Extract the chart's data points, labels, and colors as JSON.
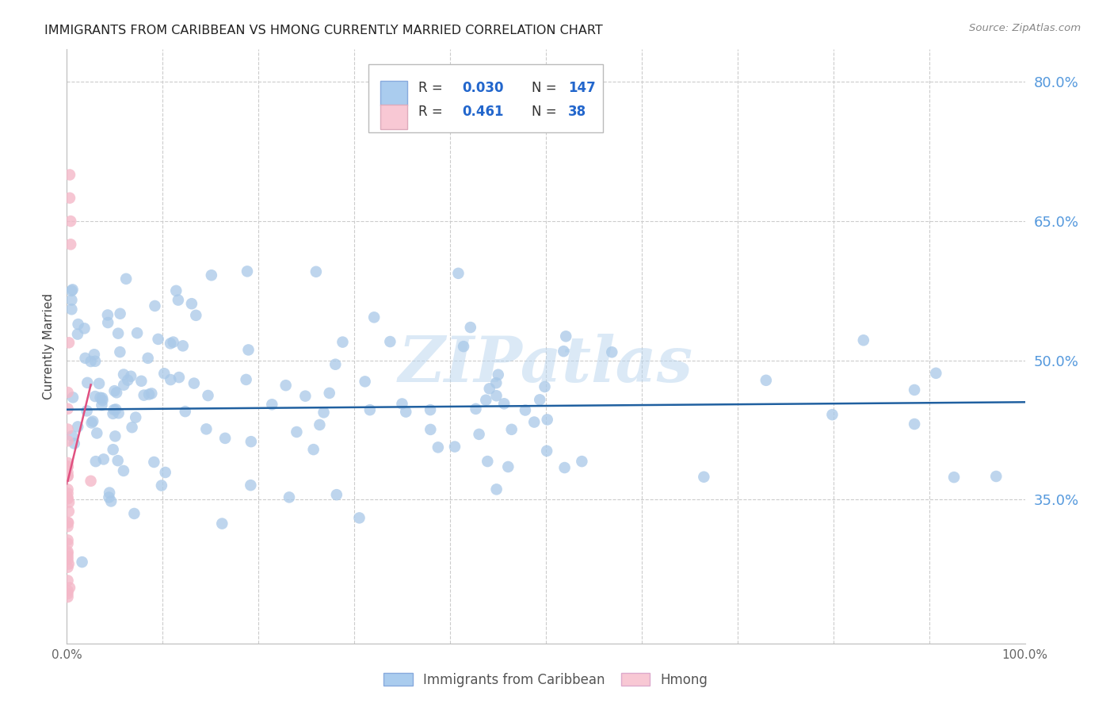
{
  "title": "IMMIGRANTS FROM CARIBBEAN VS HMONG CURRENTLY MARRIED CORRELATION CHART",
  "source": "Source: ZipAtlas.com",
  "ylabel": "Currently Married",
  "xmin": 0.0,
  "xmax": 1.0,
  "ymin": 0.195,
  "ymax": 0.835,
  "watermark": "ZIPatlas",
  "blue_color": "#a8c8e8",
  "pink_color": "#f4b8c8",
  "blue_line_color": "#2060a0",
  "pink_line_color": "#e05080",
  "background_color": "#ffffff",
  "grid_color": "#cccccc",
  "yticks": [
    0.35,
    0.5,
    0.65,
    0.8
  ],
  "ytick_labels": [
    "35.0%",
    "50.0%",
    "65.0%",
    "80.0%"
  ],
  "right_label_color": "#5599dd",
  "legend_text_color": "#333333",
  "legend_value_color": "#2266cc",
  "source_color": "#888888"
}
